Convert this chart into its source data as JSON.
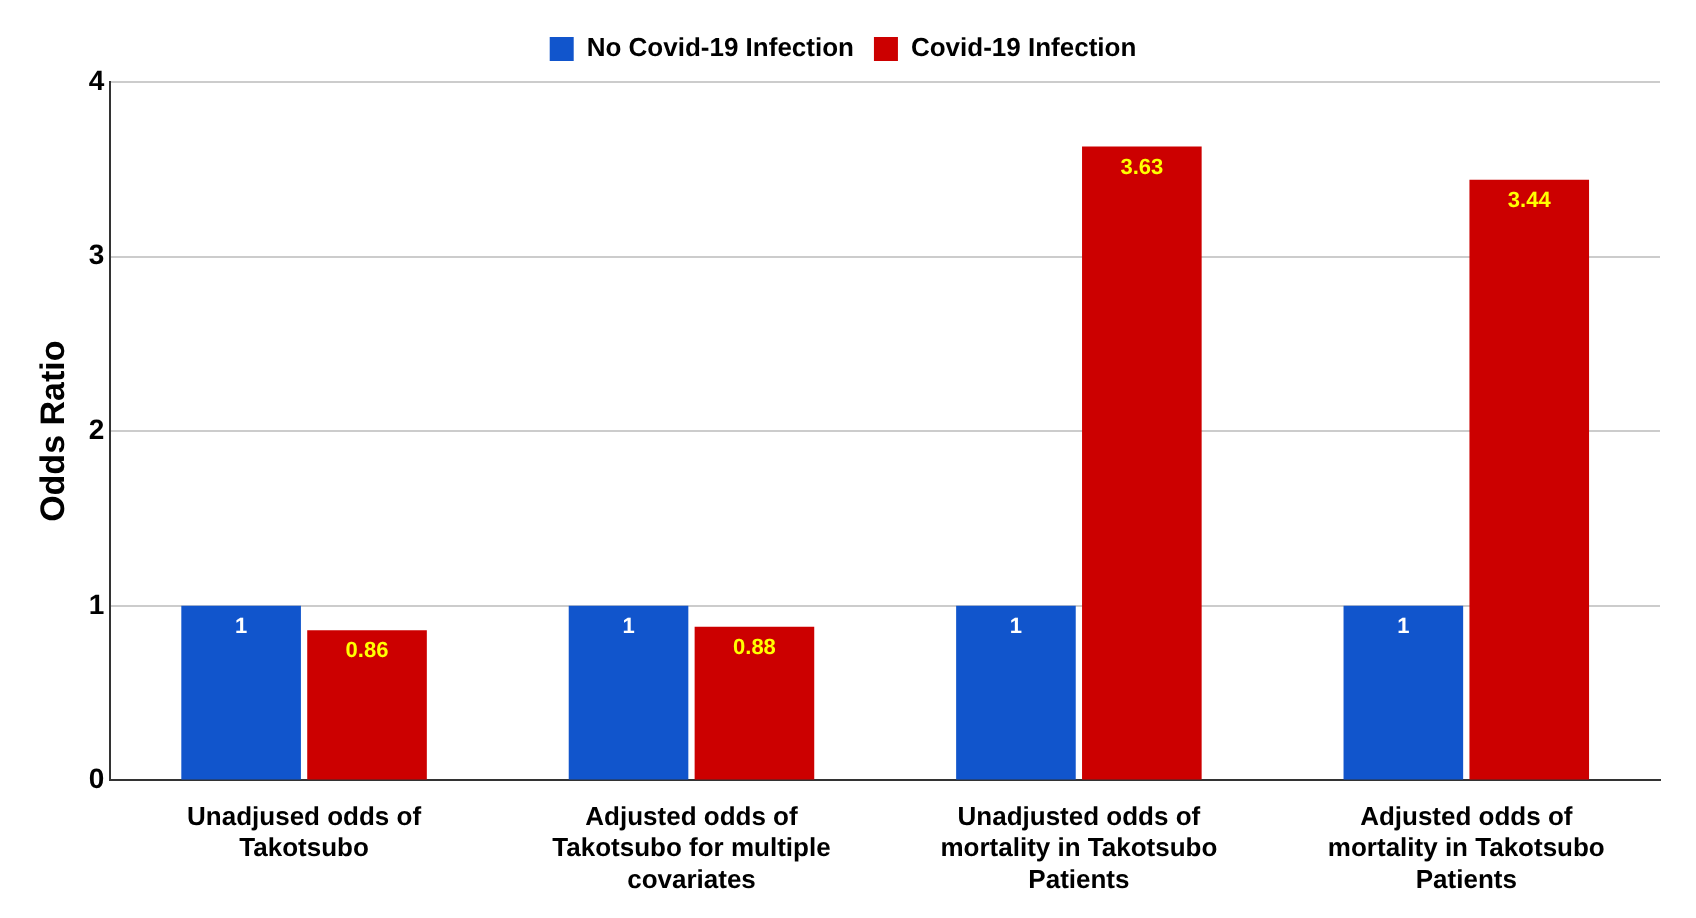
{
  "chart_data": {
    "type": "bar",
    "ylabel": "Odds Ratio",
    "categories": [
      "Unadjused odds of Takotsubo",
      "Adjusted odds of Takotsubo for multiple covariates",
      "Unadjusted odds of mortality in Takotsubo Patients",
      "Adjusted odds of mortality in Takotsubo Patients"
    ],
    "series": [
      {
        "name": "No Covid-19 Infection",
        "color": "#1155cc",
        "values": [
          1,
          1,
          1,
          1
        ]
      },
      {
        "name": "Covid-19 Infection",
        "color": "#cc0000",
        "values": [
          0.86,
          0.88,
          3.63,
          3.44
        ]
      }
    ],
    "ylim": [
      0,
      4
    ],
    "yticks": [
      0,
      1,
      2,
      3,
      4
    ],
    "grid": "y",
    "legend": "top",
    "data_labels": true
  }
}
